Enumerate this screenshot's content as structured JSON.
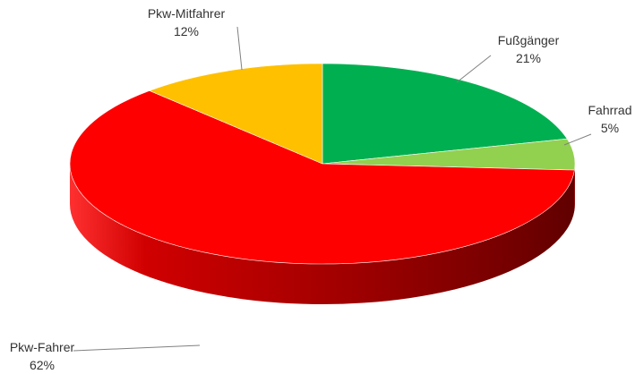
{
  "chart_data": {
    "type": "pie",
    "title": "",
    "style": "3d",
    "slices": [
      {
        "label": "Fußgänger",
        "percent_label": "21%",
        "value": 21,
        "color": "#00B050"
      },
      {
        "label": "Fahrrad",
        "percent_label": "5%",
        "value": 5,
        "color": "#92D050"
      },
      {
        "label": "Pkw-Fahrer",
        "percent_label": "62%",
        "value": 62,
        "color": "#FF0000"
      },
      {
        "label": "Pkw-Mitfahrer",
        "percent_label": "12%",
        "value": 12,
        "color": "#FFC000"
      }
    ],
    "legend": "none"
  }
}
